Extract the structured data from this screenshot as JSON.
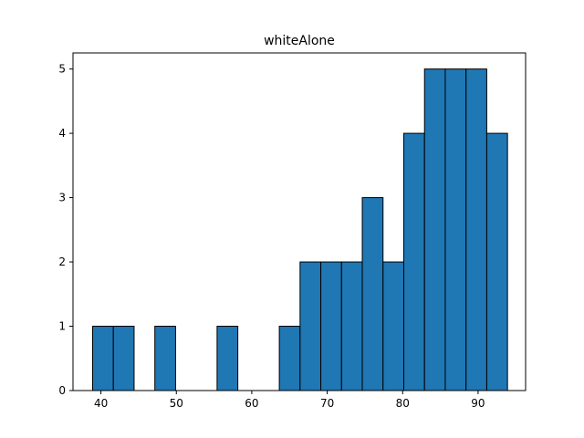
{
  "chart_data": {
    "type": "bar",
    "title": "whiteAlone",
    "xlabel": "",
    "ylabel": "",
    "xlim": [
      36.3,
      96.3
    ],
    "ylim": [
      0,
      5.25
    ],
    "xticks": [
      40,
      50,
      60,
      70,
      80,
      90
    ],
    "yticks": [
      0,
      1,
      2,
      3,
      4,
      5
    ],
    "bin_width": 2.75,
    "bins": [
      {
        "x0": 38.9,
        "count": 1
      },
      {
        "x0": 41.65,
        "count": 1
      },
      {
        "x0": 44.4,
        "count": 0
      },
      {
        "x0": 47.15,
        "count": 1
      },
      {
        "x0": 49.9,
        "count": 0
      },
      {
        "x0": 52.65,
        "count": 0
      },
      {
        "x0": 55.4,
        "count": 1
      },
      {
        "x0": 58.15,
        "count": 0
      },
      {
        "x0": 60.9,
        "count": 0
      },
      {
        "x0": 63.65,
        "count": 1
      },
      {
        "x0": 66.4,
        "count": 2
      },
      {
        "x0": 69.15,
        "count": 2
      },
      {
        "x0": 71.9,
        "count": 2
      },
      {
        "x0": 74.65,
        "count": 3
      },
      {
        "x0": 77.4,
        "count": 2
      },
      {
        "x0": 80.15,
        "count": 4
      },
      {
        "x0": 82.9,
        "count": 5
      },
      {
        "x0": 85.65,
        "count": 5
      },
      {
        "x0": 88.4,
        "count": 5
      },
      {
        "x0": 91.15,
        "count": 4
      }
    ],
    "bar_color": "#1f77b4",
    "edge_color": "#000000",
    "grid": false,
    "legend": "none"
  }
}
